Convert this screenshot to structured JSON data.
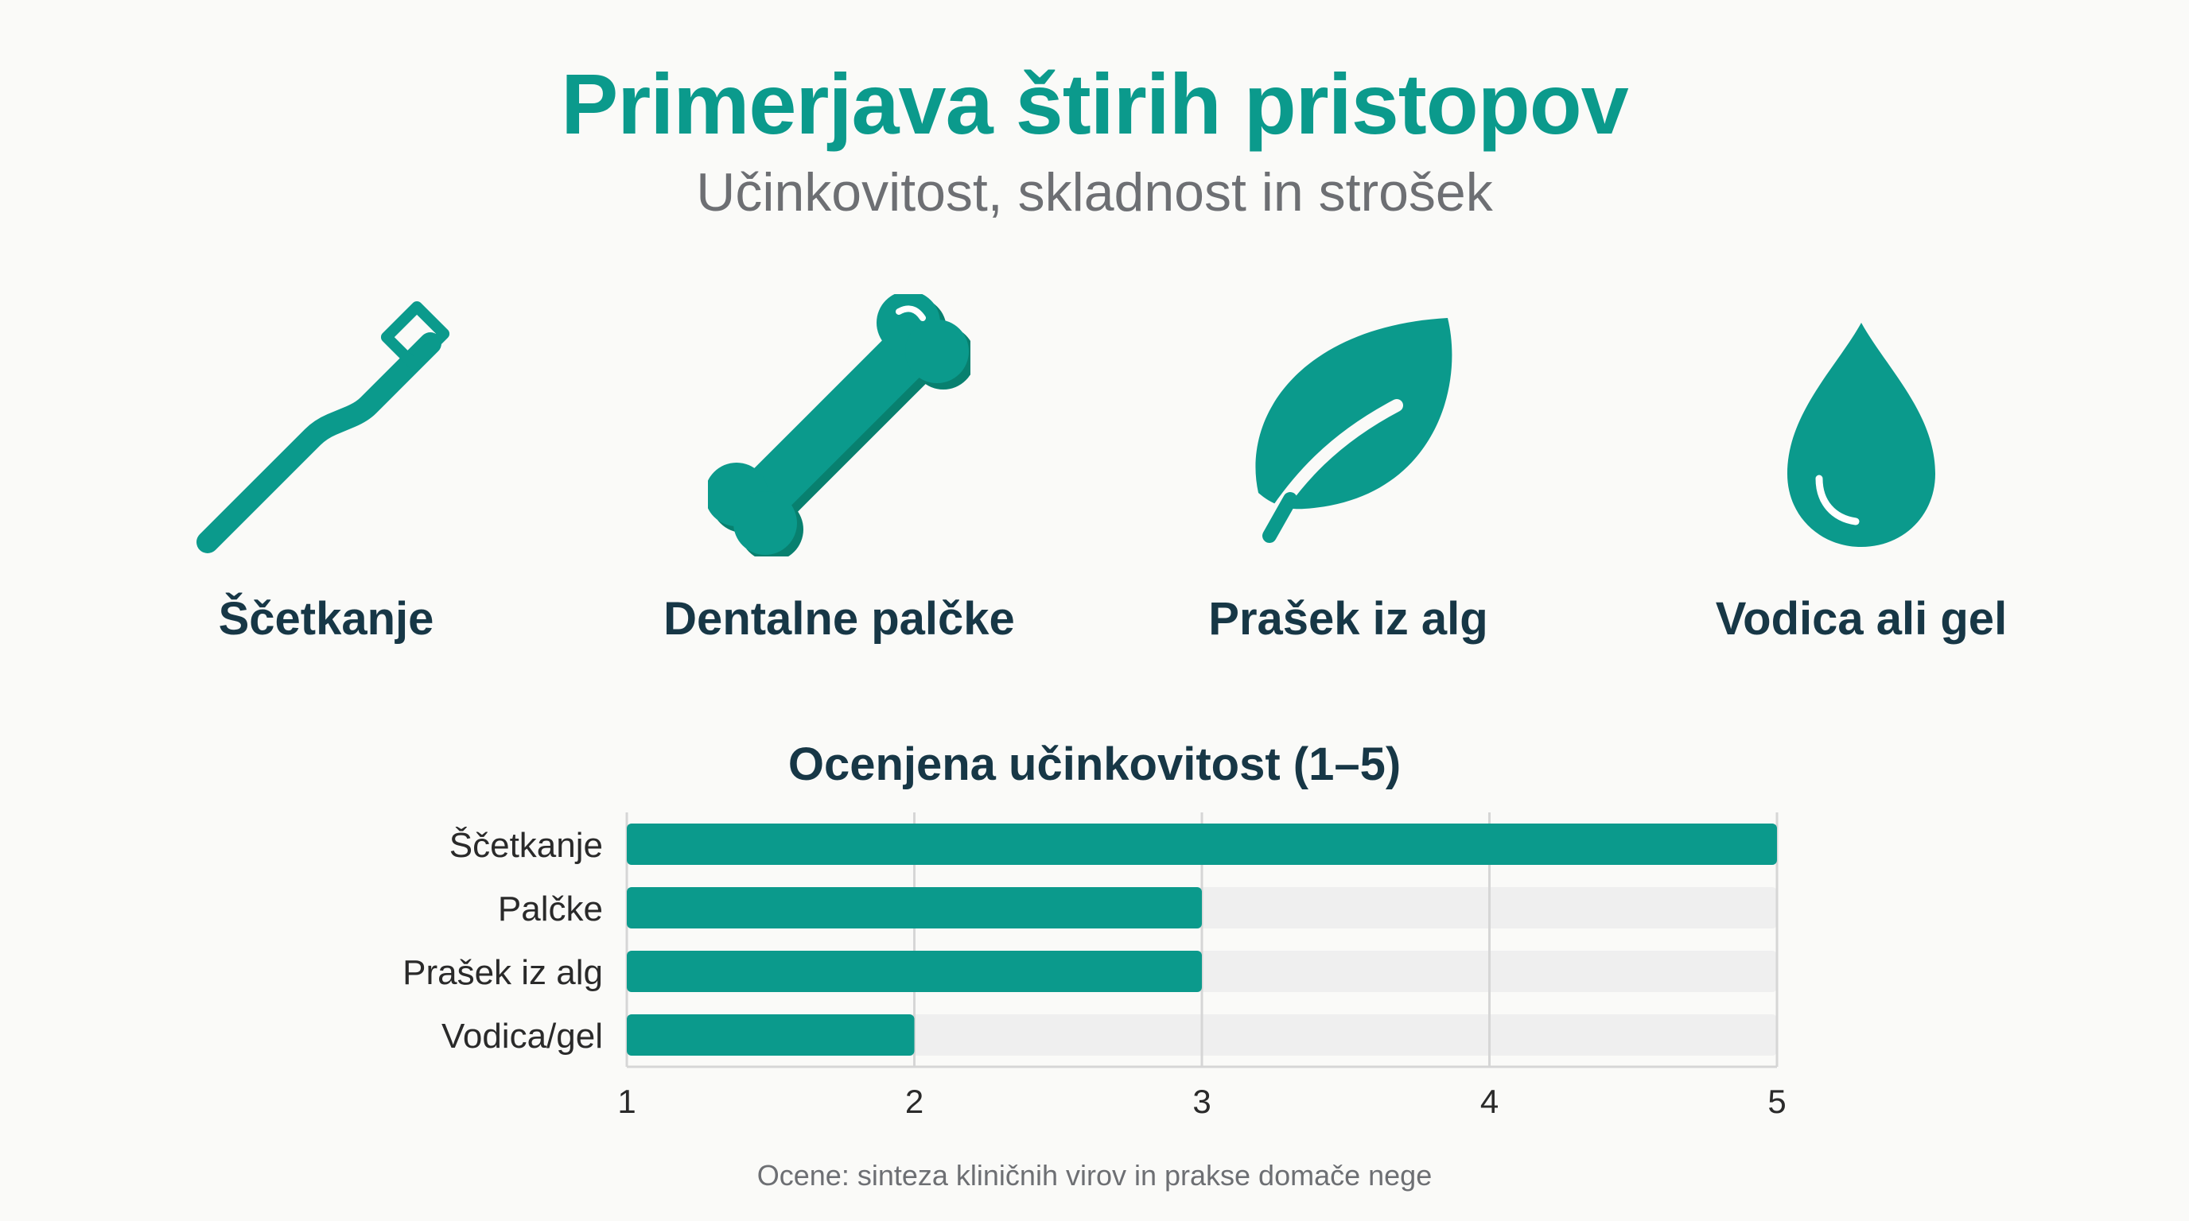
{
  "title": "Primerjava štirih pristopov",
  "subtitle": "Učinkovitost, skladnost in strošek",
  "colors": {
    "accent": "#0b9a8c",
    "dark_text": "#173746",
    "muted_text": "#6d6f73",
    "track": "#efefef",
    "grid": "#d6d6d6"
  },
  "approaches": [
    {
      "icon": "toothbrush-icon",
      "label": "Ščetkanje"
    },
    {
      "icon": "bone-icon",
      "label": "Dentalne palčke"
    },
    {
      "icon": "leaf-icon",
      "label": "Prašek iz alg"
    },
    {
      "icon": "water-drop-icon",
      "label": "Vodica ali gel"
    }
  ],
  "chart_data": {
    "type": "bar",
    "orientation": "horizontal",
    "title": "Ocenjena učinkovitost (1–5)",
    "categories": [
      "Ščetkanje",
      "Palčke",
      "Prašek iz alg",
      "Vodica/gel"
    ],
    "values": [
      5,
      3,
      3,
      2
    ],
    "xlim": [
      1,
      5
    ],
    "xticks": [
      "1",
      "2",
      "3",
      "4",
      "5"
    ],
    "grid": true,
    "legend": "none"
  },
  "footnote": "Ocene: sinteza kliničnih virov in prakse domače nege"
}
